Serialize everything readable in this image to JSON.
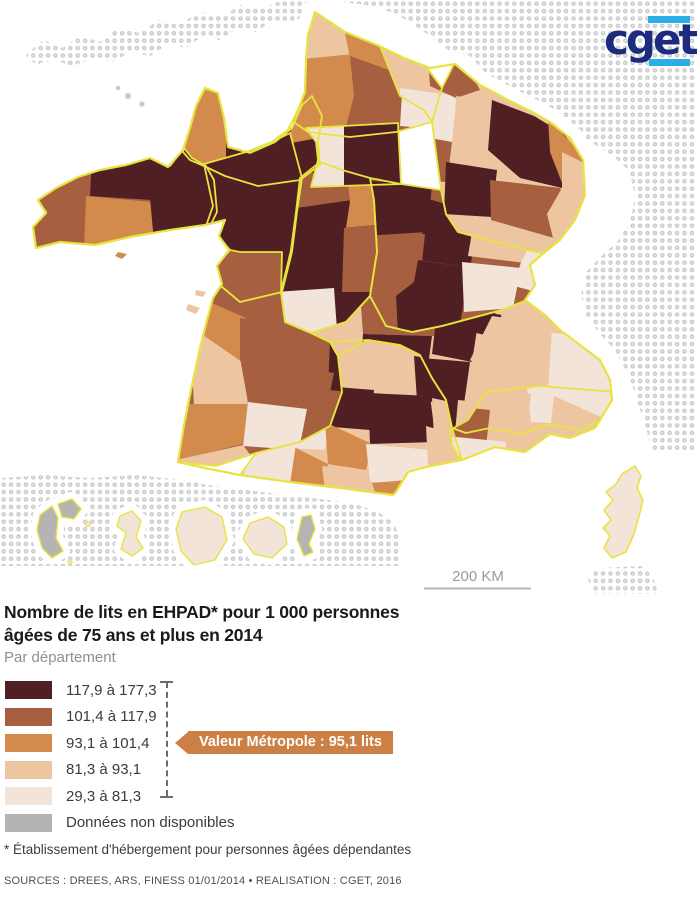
{
  "brand": {
    "logo_text": "cget",
    "navy": "#1c2b7e",
    "cyan": "#2aaee5"
  },
  "title": {
    "line1": "Nombre de lits en EHPAD* pour 1 000 personnes",
    "line2": "âgées de 75 ans et plus en 2014",
    "subtitle": "Par département"
  },
  "map": {
    "scale_label": "200 KM",
    "region_border_color": "#e7e43f",
    "dot_color": "#c7c7cb",
    "dot_center_color": "#ebebee",
    "halo_color": "#ffffff",
    "scale_text_color": "#9b9b9b",
    "scale_line_color": "#b5b5b5"
  },
  "legend": {
    "classes": [
      {
        "label": "117,9 à 177,3",
        "color": "#4f1f23"
      },
      {
        "label": "101,4 à 117,9",
        "color": "#a6603f"
      },
      {
        "label": "93,1 à 101,4",
        "color": "#d28b4c"
      },
      {
        "label": "81,3 à 93,1",
        "color": "#edc5a1"
      },
      {
        "label": "29,3 à 81,3",
        "color": "#f3e4da"
      },
      {
        "label": "Données non disponibles",
        "color": "#b5b4b4"
      }
    ],
    "callout": {
      "text": "Valeur Métropole : 95,1 lits",
      "color": "#cd8045"
    }
  },
  "footnote": "* Établissement d'hébergement pour personnes âgées dépendantes",
  "sources": "SOURCES : DREES, ARS, FINESS 01/01/2014 • REALISATION : CGET, 2016"
}
